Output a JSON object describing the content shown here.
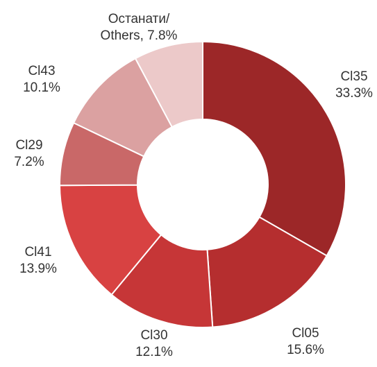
{
  "chart_data": {
    "type": "donut",
    "categories": [
      "Cl35",
      "Cl05",
      "Cl30",
      "Cl41",
      "Cl29",
      "Cl43",
      "Останати/ Others,"
    ],
    "values": [
      33.3,
      15.6,
      12.1,
      13.9,
      7.2,
      10.1,
      7.8
    ],
    "value_labels": [
      "33.3%",
      "15.6%",
      "12.1%",
      "13.9%",
      "7.2%",
      "10.1%",
      "7.8%"
    ],
    "colors": [
      "#9c2728",
      "#b52e2f",
      "#c63637",
      "#d84242",
      "#c96868",
      "#dba1a1",
      "#ecc9c9"
    ]
  }
}
